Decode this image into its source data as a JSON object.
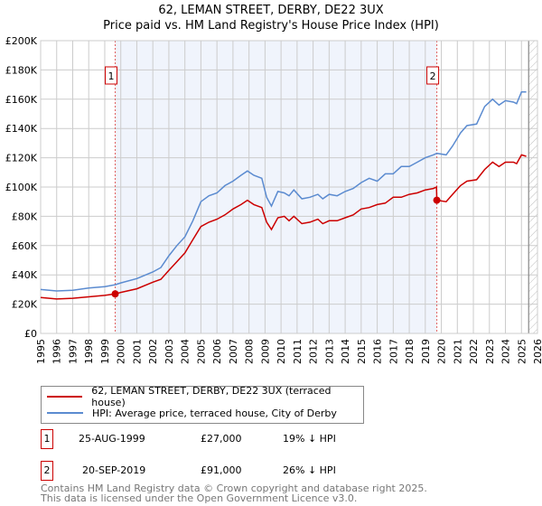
{
  "chart_data": {
    "type": "line",
    "title": "62, LEMAN STREET, DERBY, DE22 3UX",
    "subtitle": "Price paid vs. HM Land Registry's House Price Index (HPI)",
    "xlim": [
      1995,
      2026
    ],
    "ylim": [
      0,
      200000
    ],
    "x_ticks": [
      "1995",
      "1996",
      "1997",
      "1998",
      "1999",
      "2000",
      "2001",
      "2002",
      "2003",
      "2004",
      "2005",
      "2006",
      "2007",
      "2008",
      "2009",
      "2010",
      "2011",
      "2012",
      "2013",
      "2014",
      "2015",
      "2016",
      "2017",
      "2018",
      "2019",
      "2020",
      "2021",
      "2022",
      "2023",
      "2024",
      "2025",
      "2026"
    ],
    "y_ticks": [
      {
        "v": 0,
        "label": "£0"
      },
      {
        "v": 20000,
        "label": "£20K"
      },
      {
        "v": 40000,
        "label": "£40K"
      },
      {
        "v": 60000,
        "label": "£60K"
      },
      {
        "v": 80000,
        "label": "£80K"
      },
      {
        "v": 100000,
        "label": "£100K"
      },
      {
        "v": 120000,
        "label": "£120K"
      },
      {
        "v": 140000,
        "label": "£140K"
      },
      {
        "v": 160000,
        "label": "£160K"
      },
      {
        "v": 180000,
        "label": "£180K"
      },
      {
        "v": 200000,
        "label": "£200K"
      }
    ],
    "grid": true,
    "shaded_range": [
      1999.65,
      2019.72
    ],
    "future_hatch_from": 2025.45,
    "series": [
      {
        "name": "62, LEMAN STREET, DERBY, DE22 3UX (terraced house)",
        "color": "#cc0000",
        "x": [
          1995,
          1996,
          1997,
          1998,
          1999,
          1999.65,
          2000,
          2001,
          2002,
          2002.5,
          2003,
          2003.5,
          2004,
          2004.5,
          2005,
          2005.5,
          2006,
          2006.5,
          2007,
          2007.5,
          2007.9,
          2008.3,
          2008.8,
          2009.1,
          2009.4,
          2009.8,
          2010.2,
          2010.5,
          2010.8,
          2011.3,
          2011.8,
          2012.3,
          2012.6,
          2013,
          2013.5,
          2014,
          2014.5,
          2015,
          2015.5,
          2016,
          2016.5,
          2017,
          2017.5,
          2018,
          2018.5,
          2019,
          2019.5,
          2019.7,
          2019.72,
          2020.3,
          2020.7,
          2021.2,
          2021.6,
          2022.2,
          2022.7,
          2023.2,
          2023.6,
          2024,
          2024.5,
          2024.7,
          2025,
          2025.3
        ],
        "y": [
          24500,
          23500,
          24000,
          25000,
          26000,
          27000,
          28000,
          30500,
          35000,
          37000,
          43000,
          49000,
          55000,
          64000,
          73000,
          76000,
          78000,
          81000,
          85000,
          88000,
          91000,
          88000,
          86000,
          76000,
          71000,
          79000,
          80000,
          77000,
          80000,
          75000,
          76000,
          78000,
          75000,
          77000,
          77000,
          79000,
          81000,
          85000,
          86000,
          88000,
          89000,
          93000,
          93000,
          95000,
          96000,
          98000,
          99000,
          100000,
          91000,
          90000,
          95000,
          101000,
          104000,
          105000,
          112000,
          117000,
          114000,
          117000,
          117000,
          116000,
          122000,
          121000
        ]
      },
      {
        "name": "HPI: Average price, terraced house, City of Derby",
        "color": "#5b8bd0",
        "x": [
          1995,
          1996,
          1997,
          1998,
          1999,
          1999.65,
          2000,
          2001,
          2002,
          2002.5,
          2003,
          2003.5,
          2004,
          2004.5,
          2005,
          2005.5,
          2006,
          2006.5,
          2007,
          2007.5,
          2007.9,
          2008.3,
          2008.8,
          2009.1,
          2009.4,
          2009.8,
          2010.2,
          2010.5,
          2010.8,
          2011.3,
          2011.8,
          2012.3,
          2012.6,
          2013,
          2013.5,
          2014,
          2014.5,
          2015,
          2015.5,
          2016,
          2016.5,
          2017,
          2017.5,
          2018,
          2018.5,
          2019,
          2019.5,
          2019.72,
          2020.3,
          2020.7,
          2021.2,
          2021.6,
          2022.2,
          2022.7,
          2023.2,
          2023.6,
          2024,
          2024.5,
          2024.7,
          2025,
          2025.3
        ],
        "y": [
          30000,
          29000,
          29500,
          31000,
          32000,
          33300,
          34500,
          37500,
          42000,
          45000,
          53000,
          60000,
          66000,
          77000,
          90000,
          94000,
          96000,
          101000,
          104000,
          108000,
          111000,
          108000,
          106000,
          93000,
          87000,
          97000,
          96000,
          94000,
          98000,
          92000,
          93000,
          95000,
          92000,
          95000,
          94000,
          97000,
          99000,
          103000,
          106000,
          104000,
          109000,
          109000,
          114000,
          114000,
          117000,
          120000,
          122000,
          123000,
          122000,
          128000,
          137000,
          142000,
          143000,
          155000,
          160000,
          156000,
          159000,
          158000,
          157000,
          165000,
          165000
        ]
      }
    ],
    "annotations": [
      {
        "label": "1",
        "x": 1999.65,
        "y": 27000
      },
      {
        "label": "2",
        "x": 2019.72,
        "y": 91000
      }
    ]
  },
  "legend": {
    "red": "62, LEMAN STREET, DERBY, DE22 3UX (terraced house)",
    "blue": "HPI: Average price, terraced house, City of Derby"
  },
  "transactions": [
    {
      "num": "1",
      "date": "25-AUG-1999",
      "price": "£27,000",
      "hpi": "19% ↓ HPI"
    },
    {
      "num": "2",
      "date": "20-SEP-2019",
      "price": "£91,000",
      "hpi": "26% ↓ HPI"
    }
  ],
  "footer": {
    "line1": "Contains HM Land Registry data © Crown copyright and database right 2025.",
    "line2": "This data is licensed under the Open Government Licence v3.0."
  },
  "colors": {
    "red": "#cc0000",
    "blue": "#5b8bd0",
    "shade": "#f0f4fc"
  }
}
